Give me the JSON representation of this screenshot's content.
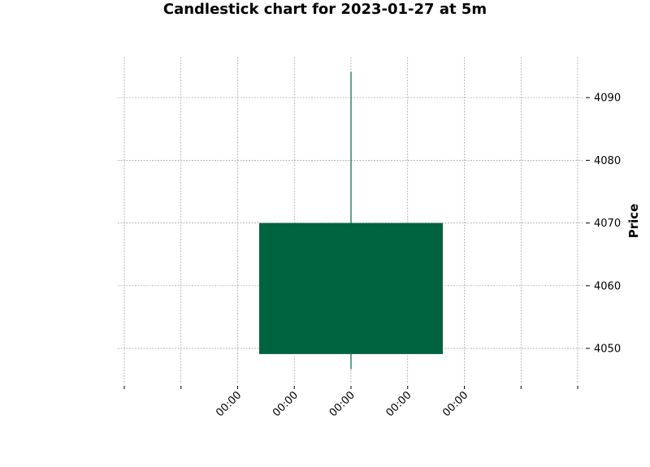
{
  "chart_data": {
    "type": "candlestick",
    "title": "Candlestick chart for 2023-01-27 at 5m",
    "ylabel": "Price",
    "xlabel": "",
    "ylim": [
      4044.3,
      4096.5
    ],
    "y_ticks": [
      4050,
      4060,
      4070,
      4080,
      4090
    ],
    "x_tick_labels": [
      "00:00",
      "00:00",
      "00:00",
      "00:00",
      "00:00"
    ],
    "xlim": [
      -2,
      2
    ],
    "x_ticks_labeled": [
      -1,
      -0.5,
      0,
      0.5,
      1
    ],
    "x_ticks_unlabeled": [
      -2,
      -1.5,
      1.5,
      2
    ],
    "candles": [
      {
        "x": 0,
        "open": 4049.1,
        "high": 4094.1,
        "low": 4046.7,
        "close": 4070.0,
        "width": 1.62
      }
    ],
    "colors": {
      "up": "#006340",
      "grid": "#9e9e9e"
    },
    "grid": true
  }
}
